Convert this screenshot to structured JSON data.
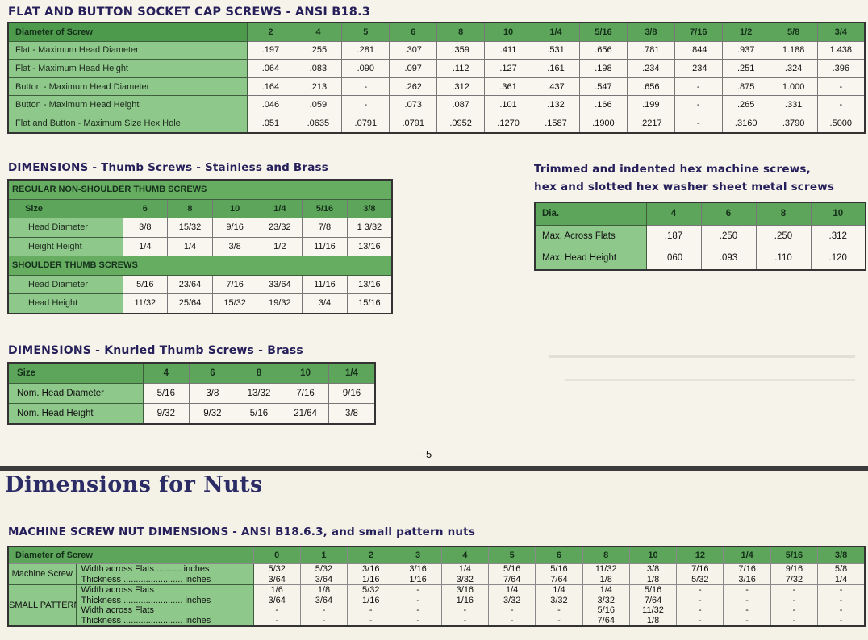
{
  "flat": {
    "title": "FLAT AND BUTTON SOCKET CAP SCREWS - ANSI B18.3",
    "header": "Diameter of Screw",
    "cols": [
      "2",
      "4",
      "5",
      "6",
      "8",
      "10",
      "1/4",
      "5/16",
      "3/8",
      "7/16",
      "1/2",
      "5/8",
      "3/4"
    ],
    "rows": [
      {
        "label": "Flat - Maximum Head Diameter",
        "values": [
          ".197",
          ".255",
          ".281",
          ".307",
          ".359",
          ".411",
          ".531",
          ".656",
          ".781",
          ".844",
          ".937",
          "1.188",
          "1.438"
        ]
      },
      {
        "label": "Flat - Maximum Head Height",
        "values": [
          ".064",
          ".083",
          ".090",
          ".097",
          ".112",
          ".127",
          ".161",
          ".198",
          ".234",
          ".234",
          ".251",
          ".324",
          ".396"
        ]
      },
      {
        "label": "Button - Maximum Head Diameter",
        "values": [
          ".164",
          ".213",
          "-",
          ".262",
          ".312",
          ".361",
          ".437",
          ".547",
          ".656",
          "-",
          ".875",
          "1.000",
          "-"
        ]
      },
      {
        "label": "Button - Maximum Head Height",
        "values": [
          ".046",
          ".059",
          "-",
          ".073",
          ".087",
          ".101",
          ".132",
          ".166",
          ".199",
          "-",
          ".265",
          ".331",
          "-"
        ]
      },
      {
        "label": "Flat and Button - Maximum Size Hex Hole",
        "values": [
          ".051",
          ".0635",
          ".0791",
          ".0791",
          ".0952",
          ".1270",
          ".1587",
          ".1900",
          ".2217",
          "-",
          ".3160",
          ".3790",
          ".5000"
        ]
      }
    ]
  },
  "thumb": {
    "title": "DIMENSIONS - Thumb Screws - Stainless and Brass",
    "regular_title": "REGULAR NON-SHOULDER THUMB SCREWS",
    "size_label": "Size",
    "cols": [
      "6",
      "8",
      "10",
      "1/4",
      "5/16",
      "3/8"
    ],
    "regular": [
      {
        "label": "Head Diameter",
        "values": [
          "3/8",
          "15/32",
          "9/16",
          "23/32",
          "7/8",
          "1 3/32"
        ]
      },
      {
        "label": "Height Height",
        "values": [
          "1/4",
          "1/4",
          "3/8",
          "1/2",
          "11/16",
          "13/16"
        ]
      }
    ],
    "shoulder_title": "SHOULDER THUMB SCREWS",
    "shoulder": [
      {
        "label": "Head Diameter",
        "values": [
          "5/16",
          "23/64",
          "7/16",
          "33/64",
          "11/16",
          "13/16"
        ]
      },
      {
        "label": "Head Height",
        "values": [
          "11/32",
          "25/64",
          "15/32",
          "19/32",
          "3/4",
          "15/16"
        ]
      }
    ]
  },
  "knurled": {
    "title": "DIMENSIONS - Knurled Thumb Screws - Brass",
    "size_label": "Size",
    "cols": [
      "4",
      "6",
      "8",
      "10",
      "1/4"
    ],
    "rows": [
      {
        "label": "Nom. Head Diameter",
        "values": [
          "5/16",
          "3/8",
          "13/32",
          "7/16",
          "9/16"
        ]
      },
      {
        "label": "Nom. Head Height",
        "values": [
          "9/32",
          "9/32",
          "5/16",
          "21/64",
          "3/8"
        ]
      }
    ]
  },
  "hex": {
    "title_line1": "Trimmed and indented hex machine screws,",
    "title_line2": "hex and slotted hex washer sheet metal screws",
    "dia_label": "Dia.",
    "cols": [
      "4",
      "6",
      "8",
      "10"
    ],
    "rows": [
      {
        "label": "Max. Across Flats",
        "values": [
          ".187",
          ".250",
          ".250",
          ".312"
        ]
      },
      {
        "label": "Max. Head Height",
        "values": [
          ".060",
          ".093",
          ".110",
          ".120"
        ]
      }
    ]
  },
  "page_number": "- 5 -",
  "nuts": {
    "title": "Dimensions for Nuts",
    "subtitle": "MACHINE SCREW NUT DIMENSIONS - ANSI B18.6.3, and small pattern nuts",
    "header": "Diameter of Screw",
    "cols": [
      "0",
      "1",
      "2",
      "3",
      "4",
      "5",
      "6",
      "8",
      "10",
      "12",
      "1/4",
      "5/16",
      "3/8"
    ],
    "machine": {
      "group": "Machine Screw",
      "sub1": "Width across Flats .......... inches",
      "sub2": "Thickness ........................ inches",
      "values": [
        [
          "5/32",
          "3/64"
        ],
        [
          "5/32",
          "3/64"
        ],
        [
          "3/16",
          "1/16"
        ],
        [
          "3/16",
          "1/16"
        ],
        [
          "1/4",
          "3/32"
        ],
        [
          "5/16",
          "7/64"
        ],
        [
          "5/16",
          "7/64"
        ],
        [
          "11/32",
          "1/8"
        ],
        [
          "3/8",
          "1/8"
        ],
        [
          "7/16",
          "5/32"
        ],
        [
          "7/16",
          "3/16"
        ],
        [
          "9/16",
          "7/32"
        ],
        [
          "5/8",
          "1/4"
        ]
      ]
    },
    "small": {
      "group": "SMALL PATTERN",
      "sub1": "Width across Flats",
      "sub2": "Thickness ........................ inches",
      "sub3": "Width across Flats",
      "sub4": "Thickness ........................ inches",
      "values": [
        [
          "1/6",
          "3/64",
          "-",
          "-"
        ],
        [
          "1/8",
          "3/64",
          "-",
          "-"
        ],
        [
          "5/32",
          "1/16",
          "-",
          "-"
        ],
        [
          "-",
          "-",
          "-",
          "-"
        ],
        [
          "3/16",
          "1/16",
          "-",
          "-"
        ],
        [
          "1/4",
          "3/32",
          "-",
          "-"
        ],
        [
          "1/4",
          "3/32",
          "-",
          "-"
        ],
        [
          "1/4",
          "3/32",
          "5/16",
          "7/64"
        ],
        [
          "5/16",
          "7/64",
          "11/32",
          "1/8"
        ],
        [
          "-",
          "-",
          "-",
          "-"
        ],
        [
          "-",
          "-",
          "-",
          "-"
        ],
        [
          "-",
          "-",
          "-",
          "-"
        ],
        [
          "-",
          "-",
          "-",
          "-"
        ]
      ]
    }
  }
}
